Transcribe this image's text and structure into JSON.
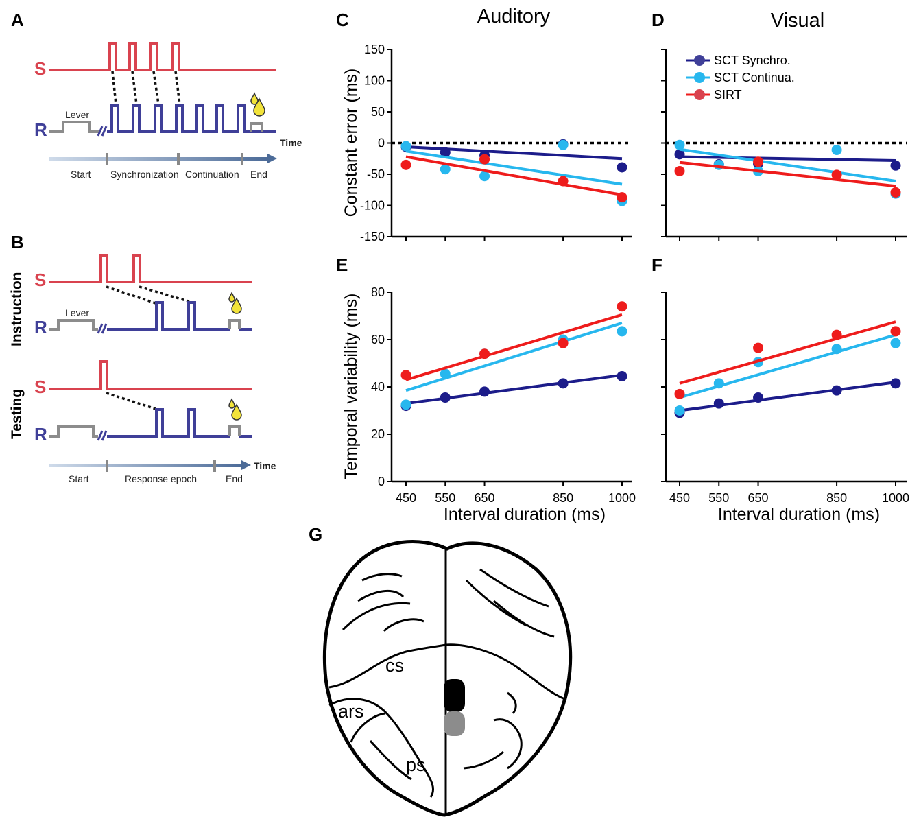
{
  "colors": {
    "stimulus": "#d9434f",
    "response": "#3f3f98",
    "lever": "#8c8c8c",
    "drop": "#f2e33a",
    "timeline": "#7b93b5",
    "sct_synchro": "#1c1c8a",
    "sct_continua": "#27b7ee",
    "sirt": "#ee1c1c"
  },
  "panel_a": {
    "letter": "A",
    "s_label": "S",
    "r_label": "R",
    "lever_label": "Lever",
    "time_label": "Time",
    "epochs": [
      "Start",
      "Synchronization",
      "Continuation",
      "End"
    ]
  },
  "panel_b": {
    "letter": "B",
    "instruction_label": "Instruction",
    "testing_label": "Testing",
    "s_label": "S",
    "r_label": "R",
    "lever_label": "Lever",
    "time_label": "Time",
    "epochs": [
      "Start",
      "Response epoch",
      "End"
    ]
  },
  "panel_g": {
    "letter": "G",
    "labels": [
      "cs",
      "ars",
      "ps"
    ]
  },
  "chart_data": [
    {
      "panel": "C",
      "type": "scatter",
      "title": "Auditory",
      "xlabel": "",
      "ylabel": "Constant error (ms)",
      "x": [
        450,
        550,
        650,
        850,
        1000
      ],
      "xlim": [
        450,
        1000
      ],
      "ylim": [
        -150,
        150
      ],
      "yticks": [
        150,
        100,
        50,
        0,
        -50,
        -100,
        -150
      ],
      "zero_line": "dotted",
      "series": [
        {
          "name": "SCT Synchro.",
          "values": [
            -6,
            -15,
            -20,
            -2,
            -39
          ],
          "fit": [
            -6,
            -25
          ]
        },
        {
          "name": "SCT Continua.",
          "values": [
            -5,
            -42,
            -53,
            -3,
            -93
          ],
          "fit": [
            -13,
            -66
          ]
        },
        {
          "name": "SIRT",
          "values": [
            -35,
            null,
            -26,
            -61,
            -87
          ],
          "fit": [
            -22,
            -83
          ]
        }
      ]
    },
    {
      "panel": "D",
      "type": "scatter",
      "title": "Visual",
      "xlabel": "",
      "ylabel": "",
      "x": [
        450,
        550,
        650,
        850,
        1000
      ],
      "xlim": [
        450,
        1000
      ],
      "ylim": [
        -150,
        150
      ],
      "zero_line": "dotted",
      "legend": "top-left",
      "series": [
        {
          "name": "SCT Synchro.",
          "values": [
            -18,
            -34,
            -33,
            null,
            -36
          ],
          "fit": [
            -22,
            -28
          ]
        },
        {
          "name": "SCT Continua.",
          "values": [
            -3,
            -35,
            -45,
            -11,
            -81
          ],
          "fit": [
            -10,
            -61
          ]
        },
        {
          "name": "SIRT",
          "values": [
            -45,
            null,
            -30,
            -51,
            -79
          ],
          "fit": [
            -31,
            -69
          ]
        }
      ]
    },
    {
      "panel": "E",
      "type": "scatter",
      "title": "",
      "xlabel": "Interval duration (ms)",
      "ylabel": "Temporal variability (ms)",
      "x": [
        450,
        550,
        650,
        850,
        1000
      ],
      "xticks": [
        450,
        550,
        650,
        850,
        1000
      ],
      "xlim": [
        450,
        1000
      ],
      "ylim": [
        0,
        80
      ],
      "yticks": [
        80,
        60,
        40,
        20,
        0
      ],
      "series": [
        {
          "name": "SCT Synchro.",
          "values": [
            32,
            35.5,
            38,
            41.5,
            44.5
          ],
          "fit": [
            33,
            45
          ]
        },
        {
          "name": "SCT Continua.",
          "values": [
            32.5,
            45.5,
            54,
            60,
            63.5
          ],
          "fit": [
            38.5,
            67
          ]
        },
        {
          "name": "SIRT",
          "values": [
            45,
            null,
            54,
            58.5,
            74
          ],
          "fit": [
            43,
            70.5
          ]
        }
      ]
    },
    {
      "panel": "F",
      "type": "scatter",
      "title": "",
      "xlabel": "Interval duration (ms)",
      "ylabel": "",
      "x": [
        450,
        550,
        650,
        850,
        1000
      ],
      "xticks": [
        450,
        550,
        650,
        850,
        1000
      ],
      "xlim": [
        450,
        1000
      ],
      "ylim": [
        0,
        80
      ],
      "series": [
        {
          "name": "SCT Synchro.",
          "values": [
            29,
            33,
            35.5,
            38.5,
            41.5
          ],
          "fit": [
            30,
            42
          ]
        },
        {
          "name": "SCT Continua.",
          "values": [
            30,
            41.5,
            50.5,
            56,
            58.5
          ],
          "fit": [
            35.5,
            62
          ]
        },
        {
          "name": "SIRT",
          "values": [
            37,
            null,
            56.5,
            62,
            63.5
          ],
          "fit": [
            41.5,
            67.5
          ]
        }
      ]
    }
  ]
}
